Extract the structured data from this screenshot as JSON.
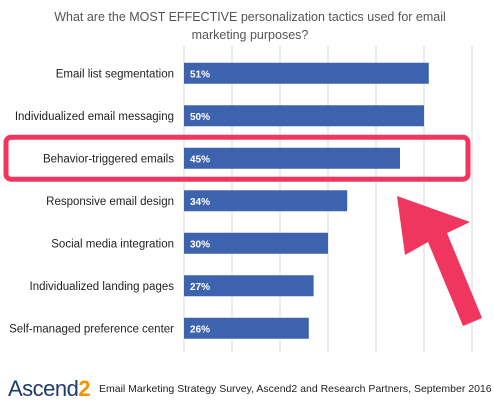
{
  "chart_data": {
    "type": "bar",
    "orientation": "horizontal",
    "title": "What are the MOST EFFECTIVE personalization tactics used for email marketing purposes?",
    "categories": [
      "Email list segmentation",
      "Individualized email messaging",
      "Behavior-triggered emails",
      "Responsive email design",
      "Social media integration",
      "Individualized landing pages",
      "Self-managed preference center"
    ],
    "values": [
      51,
      50,
      45,
      34,
      30,
      27,
      26
    ],
    "value_labels": [
      "51%",
      "50%",
      "45%",
      "34%",
      "30%",
      "27%",
      "26%"
    ],
    "xlim": [
      0,
      60
    ],
    "grid": true,
    "highlight": {
      "category": "Behavior-triggered emails",
      "box_color": "#f0365e",
      "arrow_color": "#f0365e"
    }
  },
  "colors": {
    "bar": "#3d63ae",
    "bar_label": "#ffffff",
    "grid": "#d9d9d9",
    "logo_ascend": "#1e3b6e",
    "logo_2": "#f39200"
  },
  "footer": {
    "logo_text": "Ascend",
    "logo_num": "2",
    "source": "Email Marketing Strategy Survey, Ascend2 and Research Partners, September 2016"
  }
}
